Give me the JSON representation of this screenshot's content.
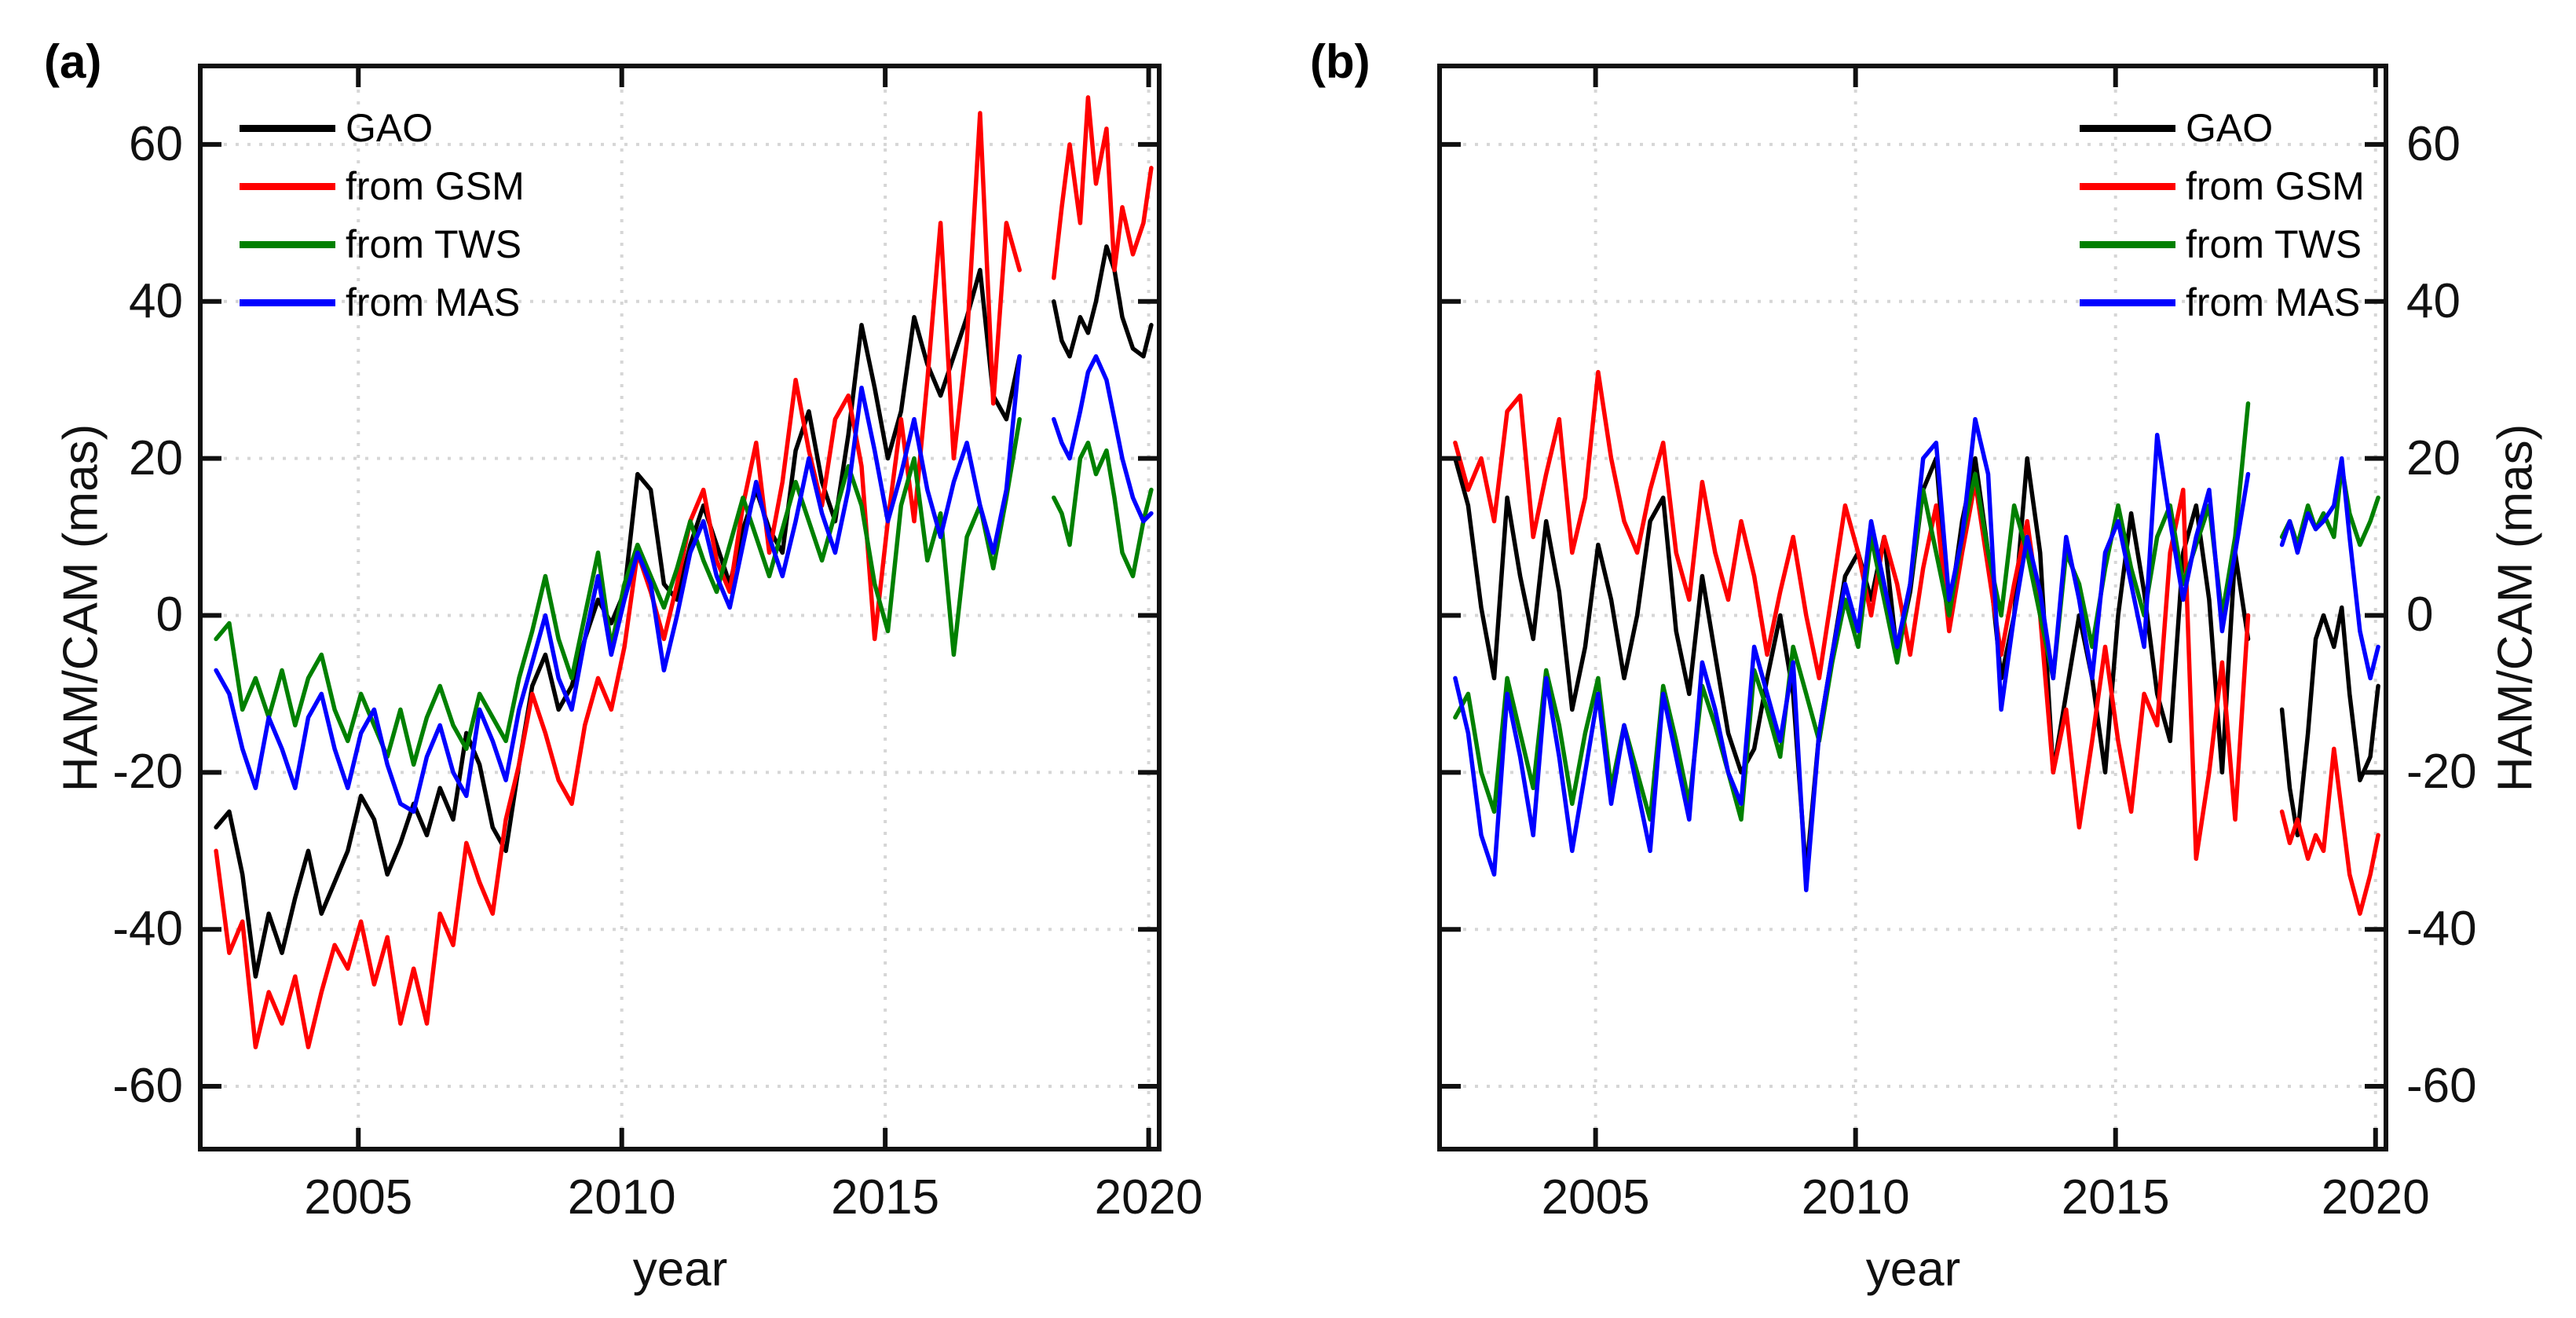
{
  "figure": {
    "background": "#ffffff",
    "panels": [
      {
        "tag": "(a)",
        "legend_position": "top-left",
        "y_axis_side": "left"
      },
      {
        "tag": "(b)",
        "legend_position": "top-right",
        "y_axis_side": "right"
      }
    ]
  },
  "axes": {
    "xlabel": "year",
    "ylabel": "HAM/CAM (mas)",
    "xlim": [
      2002,
      2020.2
    ],
    "ylim": [
      -68,
      70
    ],
    "xticks": [
      2005,
      2010,
      2015,
      2020
    ],
    "yticks": [
      -60,
      -40,
      -20,
      0,
      20,
      40,
      60
    ],
    "grid": "dotted",
    "grid_color": "#d6d6d6",
    "axis_color": "#101010"
  },
  "legend": {
    "items": [
      {
        "label": "GAO",
        "color": "#000000"
      },
      {
        "label": "from GSM",
        "color": "#ff0000"
      },
      {
        "label": "from TWS",
        "color": "#008000"
      },
      {
        "label": "from MAS",
        "color": "#0000ff"
      }
    ]
  },
  "time": {
    "x_pre": [
      2002.3,
      2002.55,
      2002.8,
      2003.05,
      2003.3,
      2003.55,
      2003.8,
      2004.05,
      2004.3,
      2004.55,
      2004.8,
      2005.05,
      2005.3,
      2005.55,
      2005.8,
      2006.05,
      2006.3,
      2006.55,
      2006.8,
      2007.05,
      2007.3,
      2007.55,
      2007.8,
      2008.05,
      2008.3,
      2008.55,
      2008.8,
      2009.05,
      2009.3,
      2009.55,
      2009.8,
      2010.05,
      2010.3,
      2010.55,
      2010.8,
      2011.05,
      2011.3,
      2011.55,
      2011.8,
      2012.05,
      2012.3,
      2012.55,
      2012.8,
      2013.05,
      2013.3,
      2013.55,
      2013.8,
      2014.05,
      2014.3,
      2014.55,
      2014.8,
      2015.05,
      2015.3,
      2015.55,
      2015.8,
      2016.05,
      2016.3,
      2016.55,
      2016.8,
      2017.05,
      2017.3,
      2017.55
    ],
    "x_post": [
      2018.2,
      2018.35,
      2018.5,
      2018.7,
      2018.85,
      2019.0,
      2019.2,
      2019.35,
      2019.5,
      2019.7,
      2019.9,
      2020.05
    ]
  },
  "chart_data": [
    {
      "id": "a",
      "type": "line",
      "title": "",
      "series": [
        {
          "name": "GAO",
          "y_pre": [
            -27,
            -25,
            -33,
            -46,
            -38,
            -43,
            -36,
            -30,
            -38,
            -34,
            -30,
            -23,
            -26,
            -33,
            -29,
            -24,
            -28,
            -22,
            -26,
            -15,
            -19,
            -27,
            -30,
            -19,
            -9,
            -5,
            -12,
            -9,
            -3,
            2,
            -1,
            3,
            18,
            16,
            4,
            2,
            9,
            14,
            9,
            4,
            11,
            16,
            11,
            8,
            21,
            26,
            17,
            12,
            23,
            37,
            29,
            20,
            26,
            38,
            32,
            28,
            33,
            38,
            44,
            28,
            25,
            33
          ],
          "y_post": [
            40,
            35,
            33,
            38,
            36,
            40,
            47,
            44,
            38,
            34,
            33,
            37
          ]
        },
        {
          "name": "from GSM",
          "y_pre": [
            -30,
            -43,
            -39,
            -55,
            -48,
            -52,
            -46,
            -55,
            -48,
            -42,
            -45,
            -39,
            -47,
            -41,
            -52,
            -45,
            -52,
            -38,
            -42,
            -29,
            -34,
            -38,
            -26,
            -19,
            -10,
            -15,
            -21,
            -24,
            -14,
            -8,
            -12,
            -4,
            8,
            3,
            -3,
            4,
            12,
            16,
            7,
            3,
            14,
            22,
            8,
            17,
            30,
            21,
            14,
            25,
            28,
            19,
            -3,
            12,
            25,
            12,
            30,
            50,
            20,
            35,
            64,
            27,
            50,
            44
          ],
          "y_post": [
            43,
            52,
            60,
            50,
            66,
            55,
            62,
            44,
            52,
            46,
            50,
            57
          ]
        },
        {
          "name": "from TWS",
          "y_pre": [
            -3,
            -1,
            -12,
            -8,
            -13,
            -7,
            -14,
            -8,
            -5,
            -12,
            -16,
            -10,
            -14,
            -18,
            -12,
            -19,
            -13,
            -9,
            -14,
            -17,
            -10,
            -13,
            -16,
            -8,
            -2,
            5,
            -3,
            -8,
            0,
            8,
            -4,
            4,
            9,
            5,
            1,
            6,
            12,
            7,
            3,
            9,
            15,
            10,
            5,
            11,
            17,
            12,
            7,
            13,
            19,
            14,
            4,
            -2,
            14,
            20,
            7,
            13,
            -5,
            10,
            14,
            6,
            15,
            25
          ],
          "y_post": [
            15,
            13,
            9,
            20,
            22,
            18,
            21,
            15,
            8,
            5,
            12,
            16
          ]
        },
        {
          "name": "from MAS",
          "y_pre": [
            -7,
            -10,
            -17,
            -22,
            -13,
            -17,
            -22,
            -13,
            -10,
            -17,
            -22,
            -15,
            -12,
            -19,
            -24,
            -25,
            -18,
            -14,
            -20,
            -23,
            -12,
            -16,
            -21,
            -12,
            -6,
            0,
            -8,
            -12,
            -3,
            5,
            -5,
            2,
            8,
            4,
            -7,
            0,
            8,
            12,
            5,
            1,
            9,
            17,
            10,
            5,
            12,
            20,
            13,
            8,
            16,
            29,
            21,
            12,
            18,
            25,
            16,
            10,
            17,
            22,
            14,
            8,
            16,
            33
          ],
          "y_post": [
            25,
            22,
            20,
            26,
            31,
            33,
            30,
            25,
            20,
            15,
            12,
            13
          ]
        }
      ]
    },
    {
      "id": "b",
      "type": "line",
      "title": "",
      "series": [
        {
          "name": "GAO",
          "y_pre": [
            20,
            14,
            1,
            -8,
            15,
            5,
            -3,
            12,
            3,
            -12,
            -4,
            9,
            2,
            -8,
            0,
            12,
            15,
            -2,
            -10,
            5,
            -5,
            -15,
            -20,
            -17,
            -8,
            0,
            -10,
            -33,
            -15,
            -5,
            5,
            8,
            2,
            10,
            -5,
            3,
            16,
            20,
            0,
            12,
            20,
            8,
            -8,
            0,
            20,
            8,
            -20,
            -10,
            0,
            -8,
            -20,
            0,
            13,
            3,
            -10,
            -16,
            8,
            14,
            2,
            -20,
            8,
            -3
          ],
          "y_post": [
            -12,
            -22,
            -28,
            -15,
            -3,
            0,
            -4,
            1,
            -10,
            -21,
            -18,
            -9
          ]
        },
        {
          "name": "from GSM",
          "y_pre": [
            22,
            16,
            20,
            12,
            26,
            28,
            10,
            18,
            25,
            8,
            15,
            31,
            20,
            12,
            8,
            16,
            22,
            8,
            2,
            17,
            8,
            2,
            12,
            5,
            -5,
            3,
            10,
            0,
            -8,
            3,
            14,
            8,
            0,
            10,
            4,
            -5,
            6,
            14,
            -2,
            8,
            17,
            6,
            -5,
            4,
            12,
            0,
            -20,
            -12,
            -27,
            -16,
            -4,
            -16,
            -25,
            -10,
            -14,
            8,
            16,
            -31,
            -20,
            -6,
            -26,
            0
          ],
          "y_post": [
            -25,
            -29,
            -26,
            -31,
            -28,
            -30,
            -17,
            -25,
            -33,
            -38,
            -33,
            -28
          ]
        },
        {
          "name": "from TWS",
          "y_pre": [
            -13,
            -10,
            -20,
            -25,
            -8,
            -15,
            -22,
            -7,
            -14,
            -24,
            -15,
            -8,
            -22,
            -14,
            -20,
            -26,
            -9,
            -16,
            -24,
            -9,
            -14,
            -20,
            -26,
            -7,
            -12,
            -18,
            -4,
            -10,
            -16,
            -6,
            2,
            -4,
            10,
            2,
            -6,
            4,
            16,
            8,
            0,
            10,
            18,
            8,
            0,
            14,
            8,
            0,
            -8,
            8,
            4,
            -4,
            6,
            14,
            6,
            0,
            10,
            14,
            4,
            9,
            14,
            0,
            10,
            27
          ],
          "y_post": [
            10,
            12,
            9,
            14,
            11,
            13,
            10,
            19,
            13,
            9,
            12,
            15
          ]
        },
        {
          "name": "from MAS",
          "y_pre": [
            -8,
            -15,
            -28,
            -33,
            -10,
            -18,
            -28,
            -8,
            -18,
            -30,
            -20,
            -10,
            -24,
            -14,
            -22,
            -30,
            -10,
            -18,
            -26,
            -6,
            -12,
            -20,
            -24,
            -4,
            -10,
            -16,
            -6,
            -35,
            -15,
            -5,
            4,
            -2,
            12,
            4,
            -4,
            4,
            20,
            22,
            2,
            10,
            25,
            18,
            -12,
            0,
            10,
            3,
            -8,
            10,
            2,
            -8,
            8,
            12,
            4,
            -4,
            23,
            12,
            2,
            10,
            16,
            -2,
            8,
            18
          ],
          "y_post": [
            9,
            12,
            8,
            13,
            11,
            12,
            14,
            20,
            10,
            -2,
            -8,
            -4
          ]
        }
      ]
    }
  ]
}
